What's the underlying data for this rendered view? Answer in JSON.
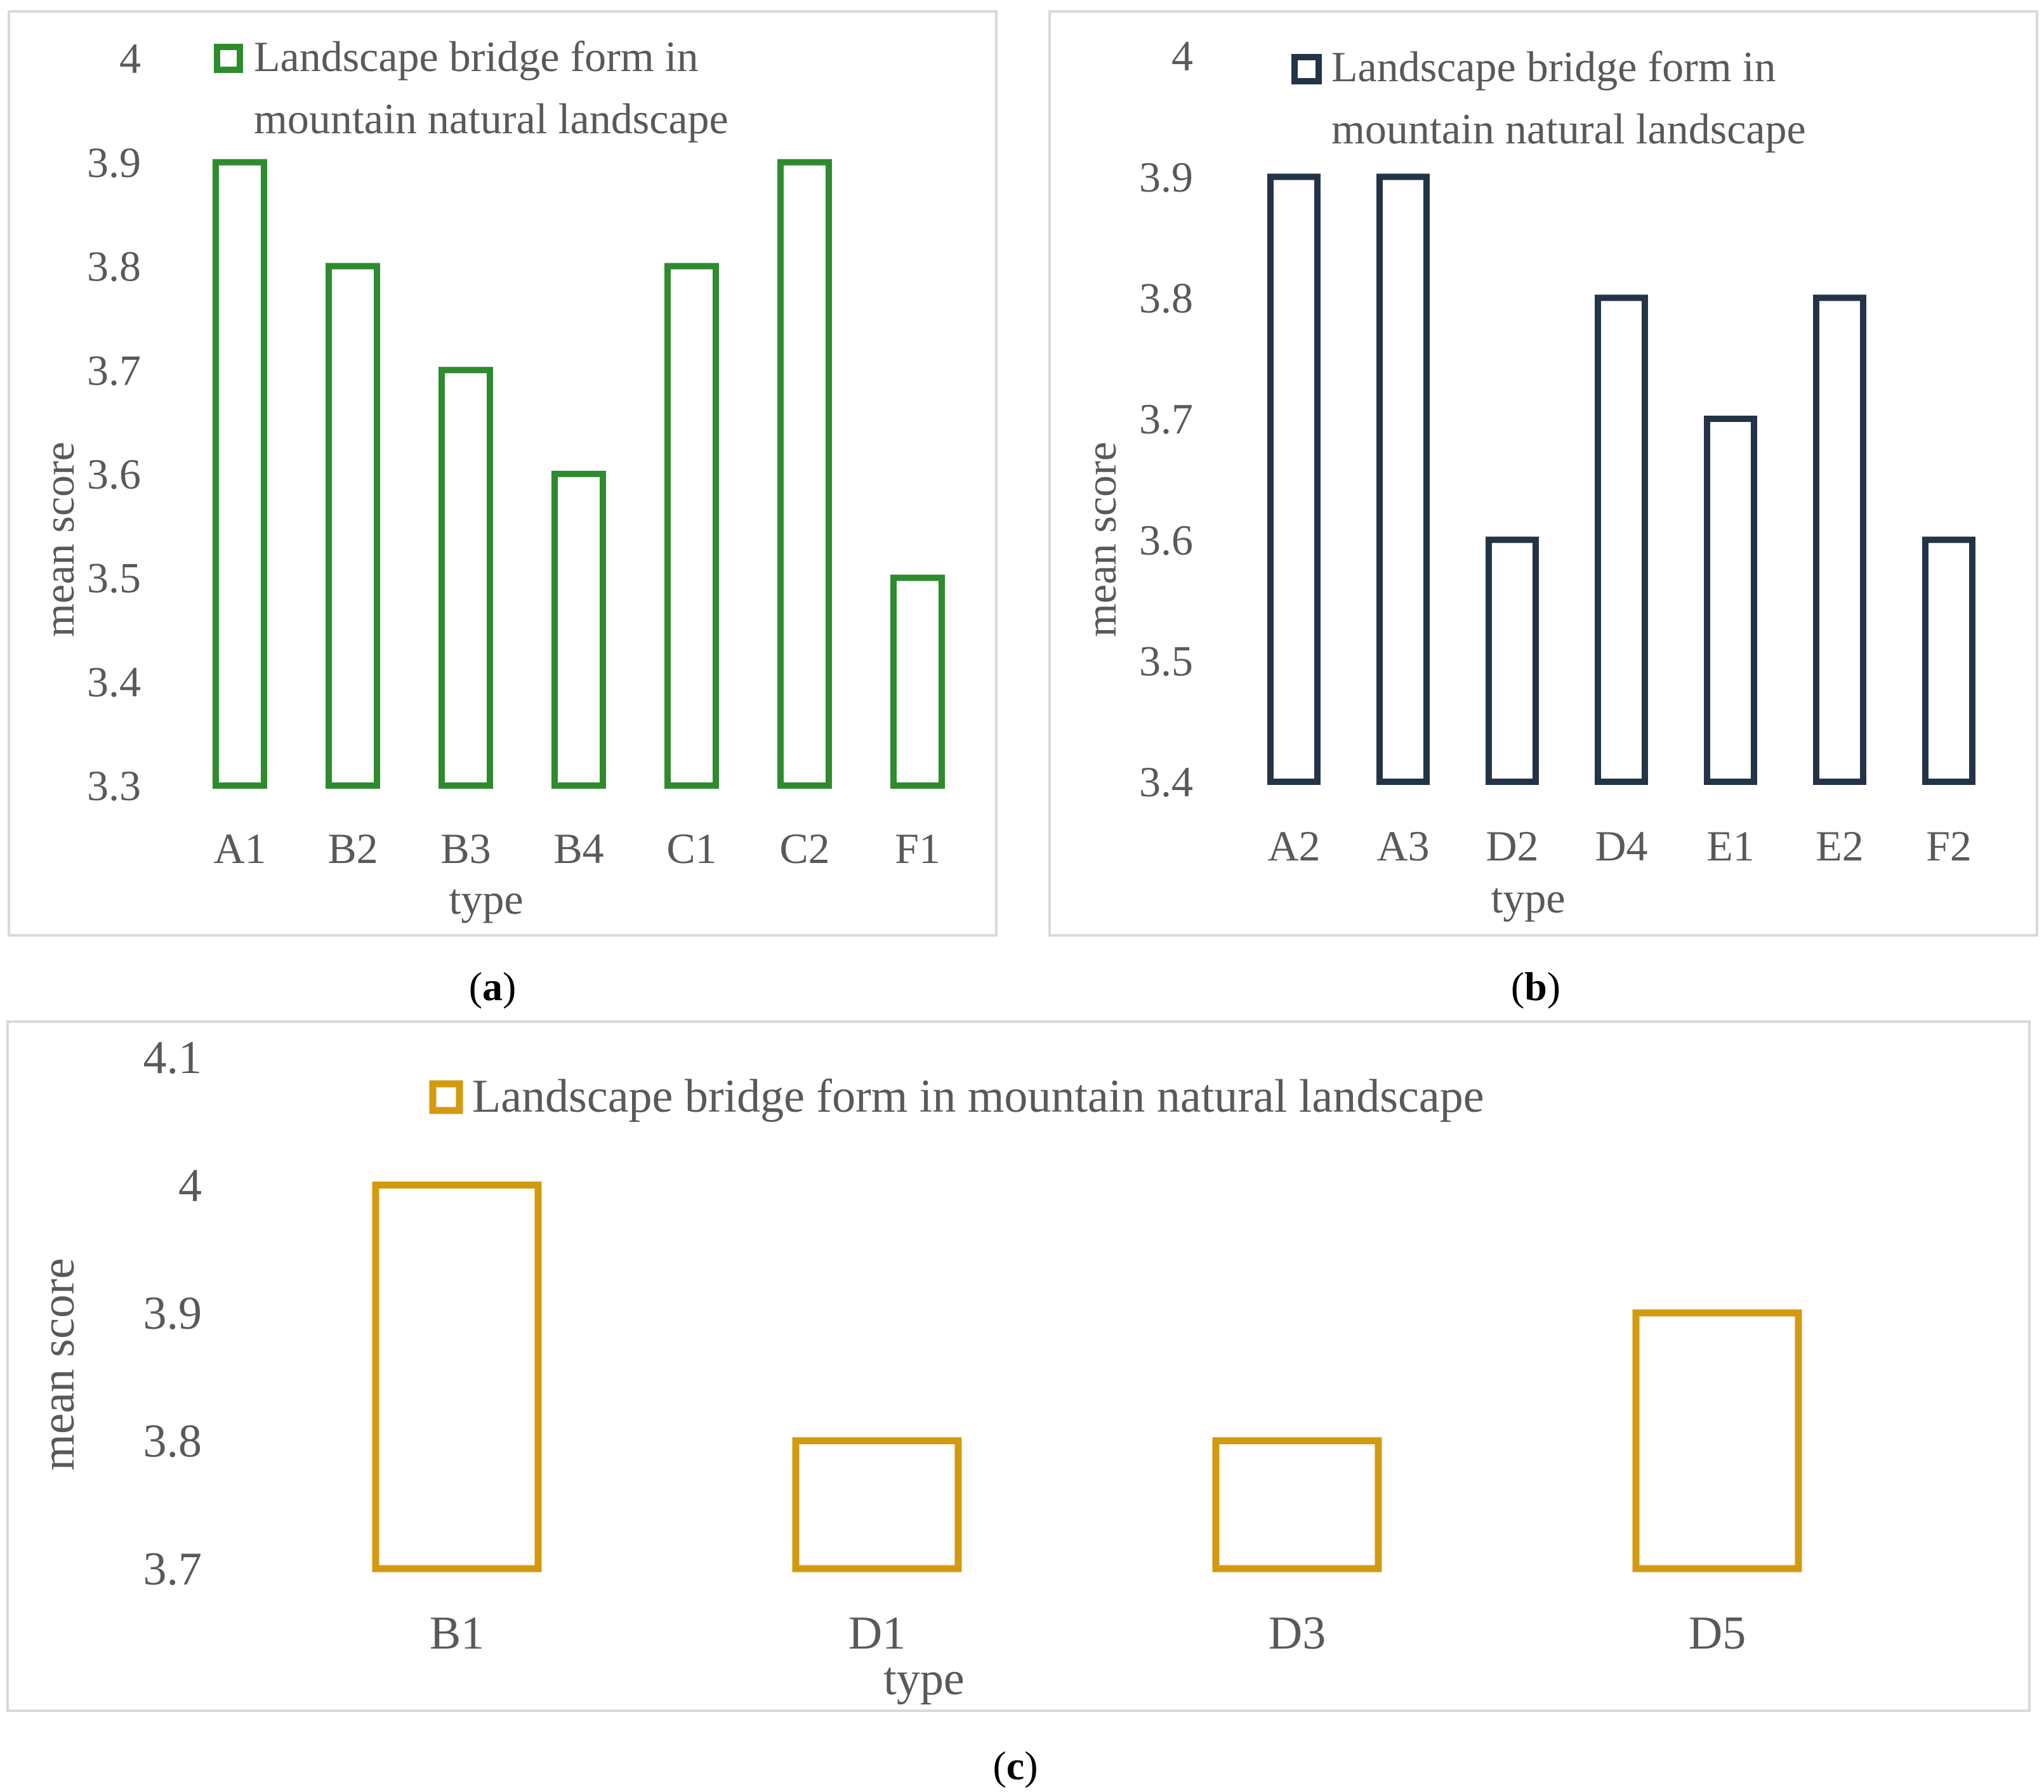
{
  "chart_data": [
    {
      "panel": "a",
      "type": "bar",
      "caption": "a",
      "categories": [
        "A1",
        "B2",
        "B3",
        "B4",
        "C1",
        "C2",
        "F1"
      ],
      "series": [
        {
          "name": "Landscape bridge form in mountain natural landscape",
          "values": [
            3.9,
            3.8,
            3.7,
            3.6,
            3.8,
            3.9,
            3.5
          ]
        }
      ],
      "legend_lines": [
        "Landscape bridge form in",
        "mountain natural landscape"
      ],
      "yticks": [
        "3.3",
        "3.4",
        "3.5",
        "3.6",
        "3.7",
        "3.8",
        "3.9",
        "4"
      ],
      "ylim": [
        3.3,
        4.0
      ],
      "xlabel": "type",
      "ylabel": "mean score",
      "color": "#2e8b2e"
    },
    {
      "panel": "b",
      "type": "bar",
      "caption": "b",
      "categories": [
        "A2",
        "A3",
        "D2",
        "D4",
        "E1",
        "E2",
        "F2"
      ],
      "series": [
        {
          "name": "Landscape bridge form in mountain natural landscape",
          "values": [
            3.9,
            3.9,
            3.6,
            3.8,
            3.7,
            3.8,
            3.6
          ]
        }
      ],
      "legend_lines": [
        "Landscape bridge form in",
        "mountain natural landscape"
      ],
      "yticks": [
        "3.4",
        "3.5",
        "3.6",
        "3.7",
        "3.8",
        "3.9",
        "4"
      ],
      "ylim": [
        3.4,
        4.0
      ],
      "xlabel": "type",
      "ylabel": "mean score",
      "color": "#243447"
    },
    {
      "panel": "c",
      "type": "bar",
      "caption": "c",
      "categories": [
        "B1",
        "D1",
        "D3",
        "D5"
      ],
      "series": [
        {
          "name": "Landscape bridge form in mountain natural landscape",
          "values": [
            4.0,
            3.8,
            3.8,
            3.9
          ]
        }
      ],
      "legend_lines": [
        "Landscape bridge form in mountain natural landscape"
      ],
      "yticks": [
        "3.7",
        "3.8",
        "3.9",
        "4",
        "4.1"
      ],
      "ylim": [
        3.7,
        4.1
      ],
      "xlabel": "type",
      "ylabel": "mean score",
      "color": "#d39a0e"
    }
  ]
}
